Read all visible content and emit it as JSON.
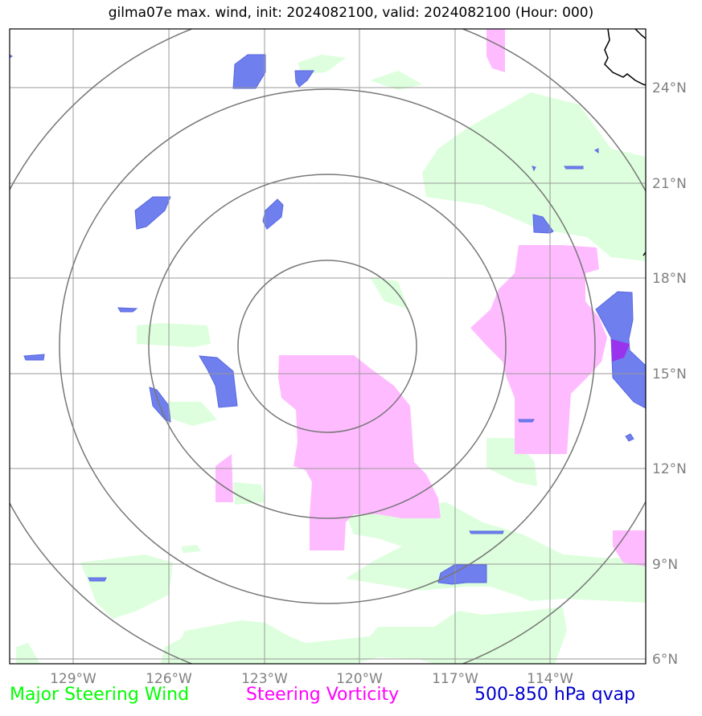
{
  "title": "gilma07e max. wind, init: 2024082100, valid: 2024082100 (Hour: 000)",
  "legend": {
    "wind": "Major Steering Wind",
    "vorticity": "Steering Vorticity",
    "qvap": "500-850 hPa qvap"
  },
  "colors": {
    "wind": "#00ff00",
    "vorticity": "#ff00ff",
    "qvap": "#0000cc",
    "wind_fill": "#ddffdd",
    "vort_fill": "#ffbbff",
    "qvap_fill": "#6f7fee",
    "grid": "#999999",
    "rings": "#777777"
  },
  "axes": {
    "lon_labels": [
      "129°W",
      "126°W",
      "123°W",
      "120°W",
      "117°W",
      "114°W"
    ],
    "lat_labels": [
      "24°N",
      "21°N",
      "18°N",
      "15°N",
      "12°N",
      "9°N",
      "6°N"
    ]
  },
  "map": {
    "extent_lon": [
      -131,
      -111
    ],
    "extent_lat": [
      5.9,
      25.9
    ],
    "center": {
      "lon": -121.1,
      "lat": 16.0
    },
    "ring_count": 4
  }
}
